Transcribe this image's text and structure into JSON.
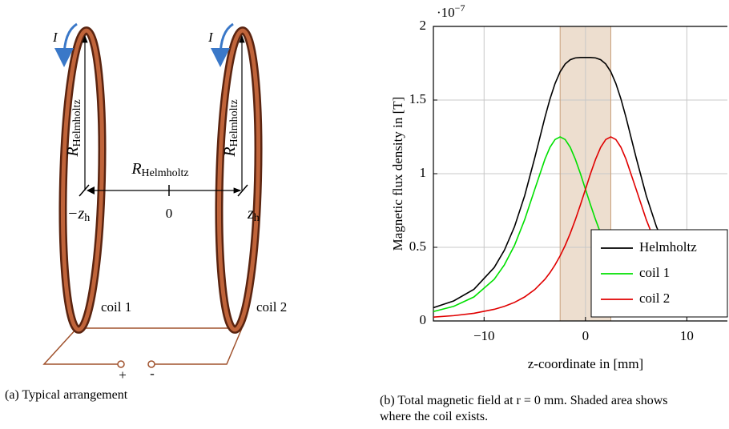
{
  "diagram": {
    "caption": "(a) Typical arrangement",
    "current_labels": [
      "I",
      "I"
    ],
    "radius_labels": [
      {
        "symbol": "R",
        "subscript": "Helmholtz"
      },
      {
        "symbol": "R",
        "subscript": "Helmholtz"
      },
      {
        "symbol": "R",
        "subscript": "Helmholtz"
      }
    ],
    "position_labels": [
      {
        "symbol": "−z",
        "subscript": "h"
      },
      {
        "symbol": "0"
      },
      {
        "symbol": "z",
        "subscript": "h"
      }
    ],
    "coil_labels": [
      "coil 1",
      "coil 2"
    ],
    "terminal_labels": [
      "+",
      "-"
    ]
  },
  "chart_data": {
    "type": "line",
    "caption": "(b) Total magnetic field at r = 0 mm. Shaded area shows where the coil exists.",
    "x_label": "z-coordinate in [mm]",
    "y_label": "Magnetic flux density in [T]",
    "y_scale_base": "·10",
    "y_scale_exponent": "−7",
    "x": [
      -15,
      -13,
      -11,
      -9,
      -8,
      -7,
      -6,
      -5,
      -4,
      -3.5,
      -3,
      -2.5,
      -2,
      -1.5,
      -1,
      -0.5,
      0,
      0.5,
      1,
      1.5,
      2,
      2.5,
      3,
      3.5,
      4,
      5,
      6,
      7,
      8,
      9,
      11,
      13,
      14
    ],
    "series": [
      {
        "name": "Helmholtz",
        "color": "#000000",
        "values": [
          0.09,
          0.136,
          0.215,
          0.363,
          0.48,
          0.64,
          0.85,
          1.108,
          1.382,
          1.507,
          1.612,
          1.692,
          1.745,
          1.774,
          1.786,
          1.789,
          1.789,
          1.789,
          1.786,
          1.774,
          1.745,
          1.692,
          1.612,
          1.507,
          1.382,
          1.108,
          0.85,
          0.64,
          0.48,
          0.363,
          0.215,
          0.136,
          0.11
        ]
      },
      {
        "name": "coil 1",
        "color": "#00e000",
        "values": [
          0.064,
          0.099,
          0.163,
          0.283,
          0.381,
          0.513,
          0.687,
          0.894,
          1.098,
          1.179,
          1.232,
          1.25,
          1.232,
          1.179,
          1.098,
          1.001,
          0.894,
          0.788,
          0.687,
          0.595,
          0.513,
          0.442,
          0.381,
          0.328,
          0.283,
          0.213,
          0.163,
          0.126,
          0.099,
          0.079,
          0.052,
          0.036,
          0.031
        ]
      },
      {
        "name": "coil 2",
        "color": "#e00000",
        "values": [
          0.026,
          0.036,
          0.052,
          0.079,
          0.099,
          0.126,
          0.163,
          0.213,
          0.283,
          0.328,
          0.381,
          0.442,
          0.513,
          0.595,
          0.687,
          0.788,
          0.894,
          1.001,
          1.098,
          1.179,
          1.232,
          1.25,
          1.232,
          1.179,
          1.098,
          0.894,
          0.687,
          0.513,
          0.381,
          0.283,
          0.163,
          0.099,
          0.079
        ]
      }
    ],
    "shaded_xrange": [
      -2.5,
      2.5
    ],
    "shade_color": "#e9d6c3",
    "xlim": [
      -15,
      14
    ],
    "ylim": [
      0,
      2
    ],
    "xticks": [
      {
        "value": -10,
        "label": "−10"
      },
      0,
      10
    ],
    "yticks": [
      0,
      0.5,
      1,
      1.5,
      2
    ],
    "grid": true,
    "legend": "lower right"
  }
}
